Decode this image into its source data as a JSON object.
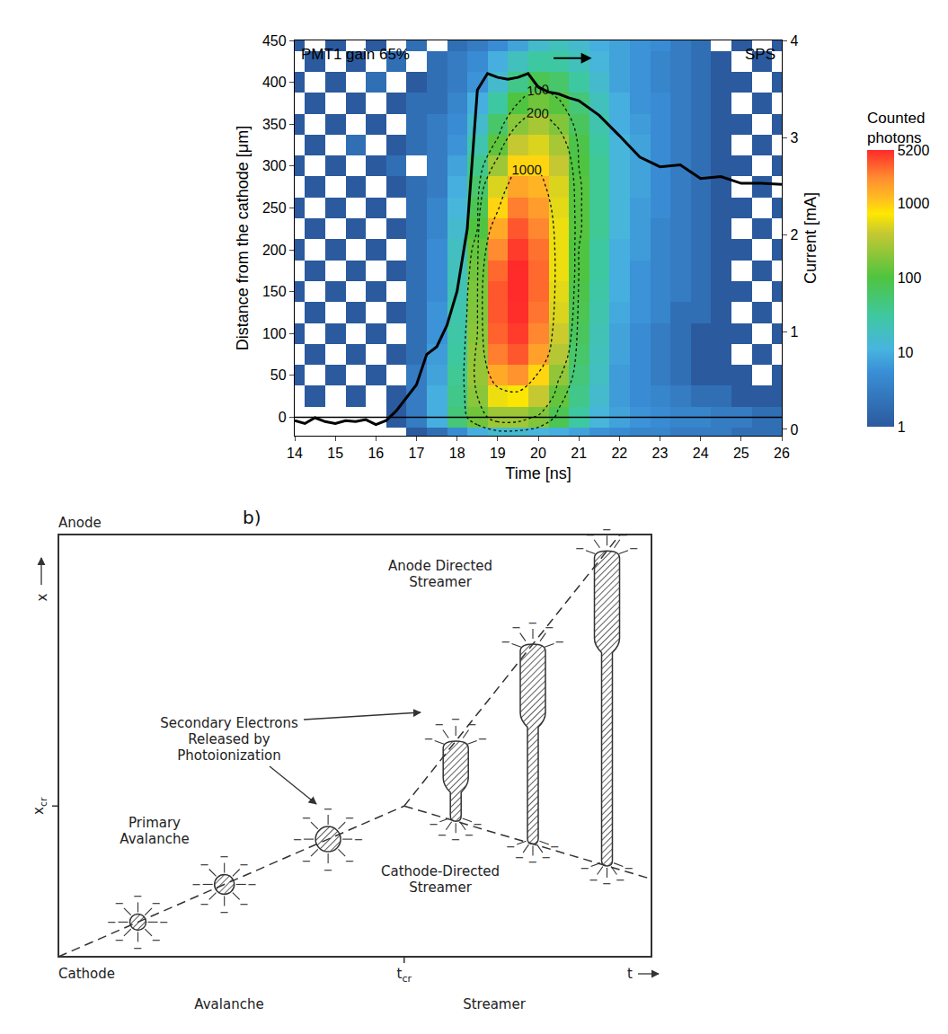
{
  "chart_data": {
    "type": "heatmap",
    "annotations": [
      "PMT1 gain 65%",
      "SPS"
    ],
    "x_label": "Time [ns]",
    "y_label": "Distance from the cathode [μm]",
    "y2_label": "Current [mA]",
    "xlim": [
      14,
      26
    ],
    "xticks": [
      14,
      15,
      16,
      17,
      18,
      19,
      20,
      21,
      22,
      23,
      24,
      25,
      26
    ],
    "ylim": [
      -22,
      450
    ],
    "yticks": [
      0,
      50,
      100,
      150,
      200,
      250,
      300,
      350,
      400,
      450
    ],
    "y2lim": [
      -0.065,
      4
    ],
    "y2ticks": [
      0,
      1,
      2,
      3,
      4
    ],
    "grid": false,
    "heatmap": {
      "colorbar_title": "Counted photons",
      "zlim": [
        1,
        5200
      ],
      "zticks": [
        1,
        10,
        100,
        1000,
        5200
      ],
      "contour_levels": [
        100,
        200,
        1000
      ],
      "x": [
        14,
        14.5,
        15,
        15.5,
        16,
        16.5,
        17,
        17.5,
        18,
        18.5,
        19,
        19.5,
        20,
        20.5,
        21,
        21.5,
        22,
        22.5,
        23,
        23.5,
        24,
        24.5,
        25,
        25.5,
        26
      ],
      "y": [
        -25,
        0,
        25,
        50,
        75,
        100,
        125,
        150,
        175,
        200,
        225,
        250,
        275,
        300,
        325,
        350,
        375,
        400,
        425,
        450
      ],
      "z": [
        [
          null,
          null,
          null,
          null,
          null,
          null,
          1,
          2,
          5,
          10,
          15,
          15,
          12,
          10,
          8,
          6,
          5,
          4,
          4,
          3,
          3,
          3,
          2,
          2,
          2
        ],
        [
          null,
          null,
          null,
          null,
          null,
          1,
          3,
          10,
          50,
          150,
          250,
          250,
          180,
          80,
          30,
          12,
          8,
          6,
          5,
          4,
          4,
          3,
          3,
          2,
          2
        ],
        [
          null,
          1,
          null,
          1,
          null,
          1,
          3,
          10,
          40,
          200,
          600,
          700,
          400,
          130,
          40,
          15,
          7,
          5,
          4,
          3,
          2,
          2,
          1,
          1,
          1
        ],
        [
          1,
          null,
          1,
          null,
          1,
          null,
          3,
          8,
          35,
          230,
          1500,
          2000,
          900,
          220,
          50,
          18,
          7,
          5,
          3,
          2,
          1,
          1,
          1,
          null,
          1
        ],
        [
          null,
          1,
          null,
          1,
          null,
          1,
          2,
          7,
          30,
          220,
          2500,
          3500,
          1700,
          330,
          60,
          20,
          8,
          5,
          3,
          2,
          1,
          1,
          null,
          1,
          null
        ],
        [
          1,
          null,
          1,
          null,
          1,
          null,
          2,
          6,
          28,
          200,
          3200,
          4500,
          2300,
          420,
          70,
          22,
          8,
          5,
          3,
          2,
          1,
          1,
          1,
          null,
          1
        ],
        [
          null,
          1,
          null,
          1,
          null,
          1,
          2,
          6,
          25,
          180,
          3500,
          5000,
          2700,
          500,
          80,
          25,
          9,
          6,
          4,
          2,
          2,
          1,
          null,
          1,
          null
        ],
        [
          1,
          null,
          1,
          null,
          1,
          null,
          2,
          5,
          22,
          170,
          3500,
          5200,
          3000,
          550,
          90,
          28,
          10,
          6,
          4,
          3,
          2,
          1,
          1,
          null,
          1
        ],
        [
          null,
          1,
          null,
          1,
          null,
          1,
          2,
          5,
          20,
          150,
          3000,
          5200,
          3000,
          600,
          100,
          30,
          10,
          6,
          4,
          3,
          2,
          1,
          null,
          1,
          null
        ],
        [
          1,
          null,
          1,
          null,
          1,
          null,
          2,
          5,
          18,
          130,
          2200,
          4500,
          2800,
          600,
          100,
          30,
          10,
          7,
          4,
          3,
          2,
          1,
          1,
          null,
          1
        ],
        [
          null,
          1,
          null,
          1,
          null,
          1,
          2,
          4,
          15,
          100,
          1500,
          3500,
          2300,
          600,
          110,
          35,
          12,
          7,
          4,
          3,
          2,
          1,
          null,
          1,
          null
        ],
        [
          1,
          null,
          1,
          null,
          1,
          null,
          2,
          4,
          12,
          80,
          900,
          2500,
          1800,
          550,
          110,
          35,
          12,
          7,
          5,
          3,
          2,
          1,
          1,
          null,
          1
        ],
        [
          null,
          1,
          null,
          1,
          null,
          1,
          2,
          3,
          10,
          60,
          500,
          1600,
          1300,
          500,
          110,
          35,
          12,
          8,
          5,
          3,
          2,
          1,
          null,
          1,
          null
        ],
        [
          1,
          null,
          1,
          null,
          1,
          2,
          null,
          3,
          8,
          40,
          250,
          900,
          900,
          400,
          100,
          35,
          12,
          8,
          5,
          3,
          2,
          1,
          1,
          null,
          1
        ],
        [
          null,
          1,
          null,
          2,
          null,
          1,
          2,
          3,
          6,
          25,
          120,
          400,
          500,
          280,
          90,
          30,
          12,
          8,
          5,
          3,
          2,
          1,
          null,
          1,
          null
        ],
        [
          1,
          null,
          1,
          null,
          1,
          null,
          2,
          3,
          5,
          15,
          60,
          200,
          280,
          180,
          70,
          25,
          10,
          7,
          5,
          3,
          2,
          1,
          1,
          null,
          1
        ],
        [
          null,
          1,
          null,
          1,
          null,
          1,
          2,
          2,
          4,
          10,
          30,
          100,
          150,
          110,
          50,
          20,
          10,
          6,
          5,
          3,
          2,
          1,
          null,
          1,
          null
        ],
        [
          1,
          null,
          1,
          null,
          2,
          null,
          1,
          2,
          3,
          6,
          15,
          40,
          80,
          60,
          30,
          15,
          8,
          6,
          4,
          3,
          2,
          1,
          1,
          null,
          1
        ],
        [
          null,
          1,
          null,
          1,
          null,
          2,
          null,
          2,
          3,
          5,
          10,
          20,
          30,
          30,
          20,
          12,
          8,
          6,
          4,
          3,
          2,
          1,
          null,
          1,
          null
        ],
        [
          1,
          null,
          1,
          null,
          1,
          null,
          2,
          null,
          2,
          3,
          5,
          8,
          15,
          20,
          15,
          10,
          8,
          6,
          5,
          3,
          2,
          null,
          1,
          null,
          1
        ]
      ]
    },
    "series": [
      {
        "type": "line",
        "color": "#000000",
        "axis": "y2",
        "x": [
          14,
          14.25,
          14.5,
          14.75,
          15,
          15.25,
          15.5,
          15.75,
          16,
          16.25,
          16.5,
          16.75,
          17,
          17.25,
          17.5,
          17.75,
          18,
          18.25,
          18.5,
          18.75,
          19,
          19.25,
          19.5,
          19.75,
          20,
          20.25,
          20.5,
          20.75,
          21,
          21.5,
          22,
          22.5,
          23,
          23.5,
          24,
          24.5,
          25,
          25.5,
          26
        ],
        "values": [
          0.09,
          0.06,
          0.12,
          0.08,
          0.06,
          0.09,
          0.08,
          0.1,
          0.05,
          0.09,
          0.19,
          0.33,
          0.46,
          0.77,
          0.85,
          1.07,
          1.42,
          2.06,
          3.49,
          3.66,
          3.62,
          3.6,
          3.62,
          3.66,
          3.52,
          3.47,
          3.45,
          3.41,
          3.38,
          3.23,
          3.02,
          2.8,
          2.7,
          2.72,
          2.58,
          2.6,
          2.53,
          2.53,
          2.52
        ]
      }
    ]
  },
  "diagram": {
    "panel_label": "b)",
    "top_label": "Anode",
    "bottom_label": "Cathode",
    "vertical_axis": "x",
    "horizontal_axis": "t",
    "x_cr": {
      "base": "x",
      "sub": "cr"
    },
    "t_cr": {
      "base": "t",
      "sub": "cr"
    },
    "phases": [
      "Avalanche",
      "Streamer"
    ],
    "labels": {
      "primary": "Primary Avalanche",
      "secondary": "Secondary Electrons Released by Photoionization",
      "anode_streamer": "Anode Directed Streamer",
      "cathode_streamer": "Cathode-Directed Streamer"
    },
    "electron_symbol": "−"
  }
}
